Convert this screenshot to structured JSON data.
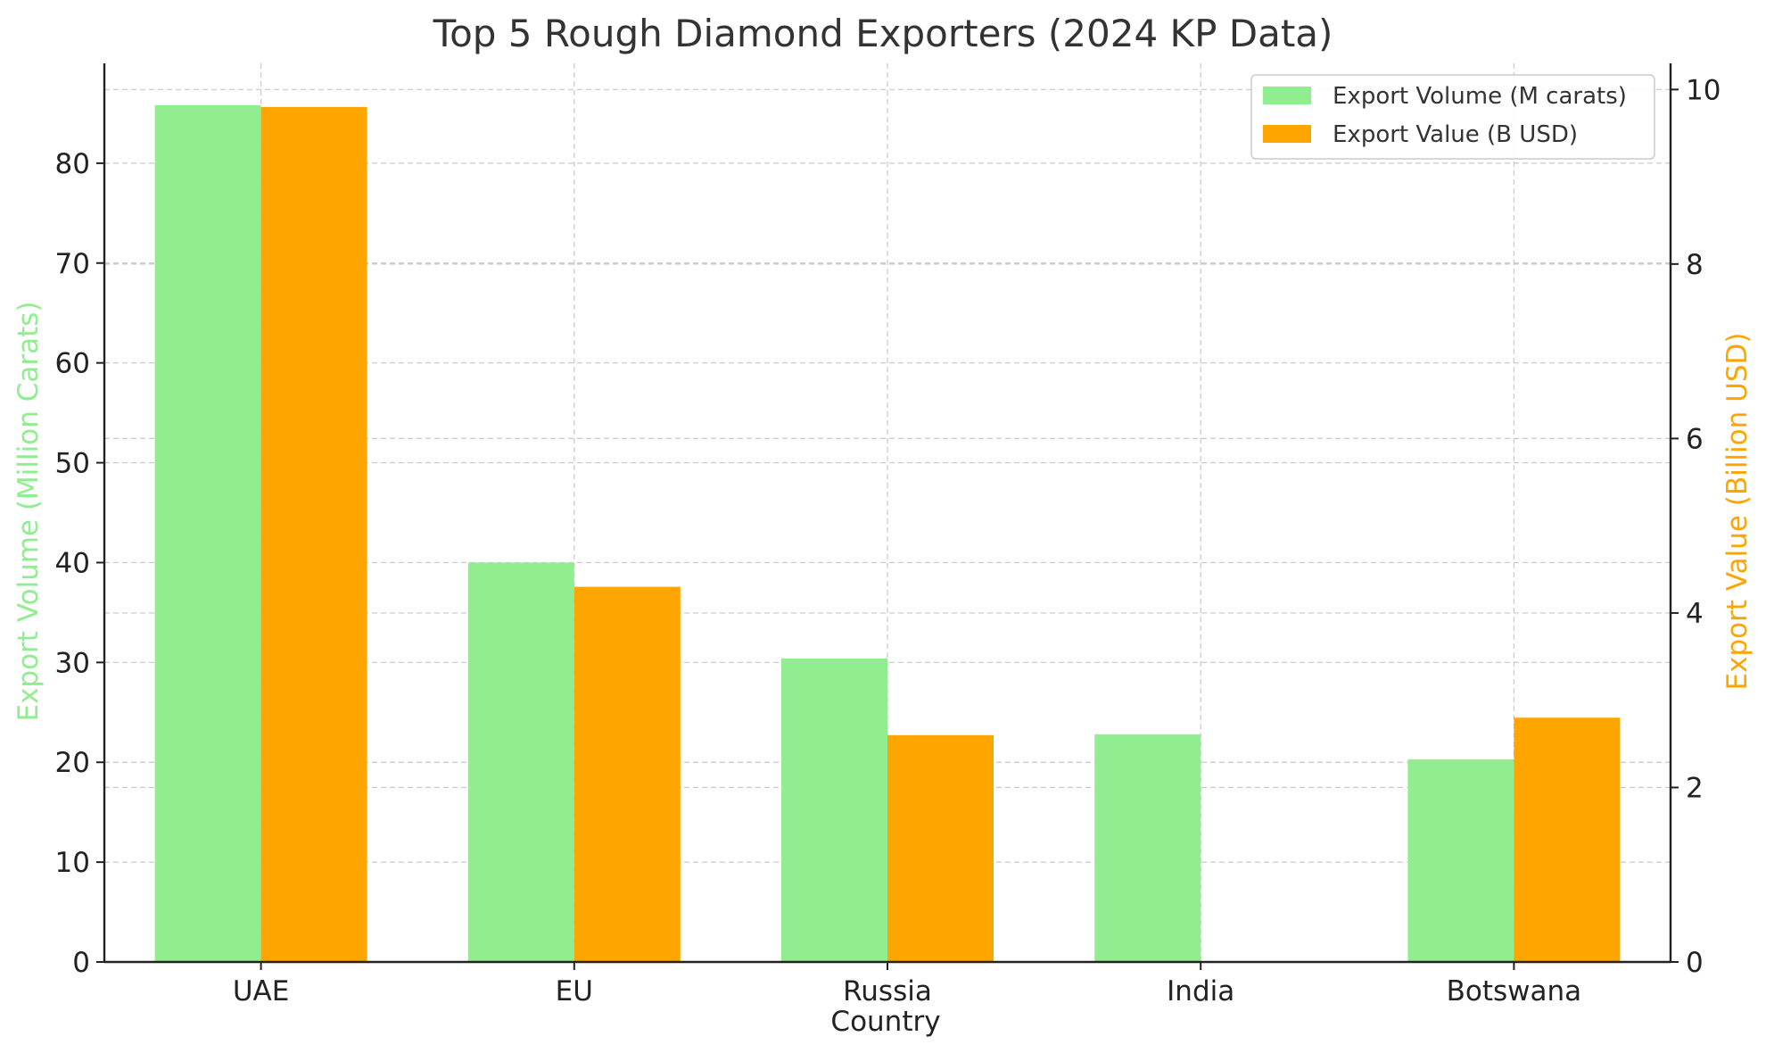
{
  "chart_data": {
    "type": "bar",
    "title": "Top 5 Rough Diamond Exporters (2024 KP Data)",
    "xlabel": "Country",
    "ylabel_left": "Export Volume (Million Carats)",
    "ylabel_right": "Export Value (Billion USD)",
    "categories": [
      "UAE",
      "EU",
      "Russia",
      "India",
      "Botswana"
    ],
    "series": [
      {
        "name": "Export Volume (M carats)",
        "axis": "left",
        "color": "#90ee90",
        "values": [
          85.8,
          40.0,
          30.4,
          22.8,
          20.3
        ]
      },
      {
        "name": "Export Value (B USD)",
        "axis": "right",
        "color": "#ffa500",
        "values": [
          9.8,
          4.3,
          2.6,
          0.0,
          2.8
        ]
      }
    ],
    "ylim_left": [
      0,
      90
    ],
    "ylim_right": [
      0,
      10.3
    ],
    "yticks_left": [
      0,
      10,
      20,
      30,
      40,
      50,
      60,
      70,
      80
    ],
    "yticks_right": [
      0,
      2,
      4,
      6,
      8,
      10
    ],
    "grid": true,
    "legend": "top-right",
    "ylabel_left_color": "#90ee90",
    "ylabel_right_color": "#ffa500"
  }
}
